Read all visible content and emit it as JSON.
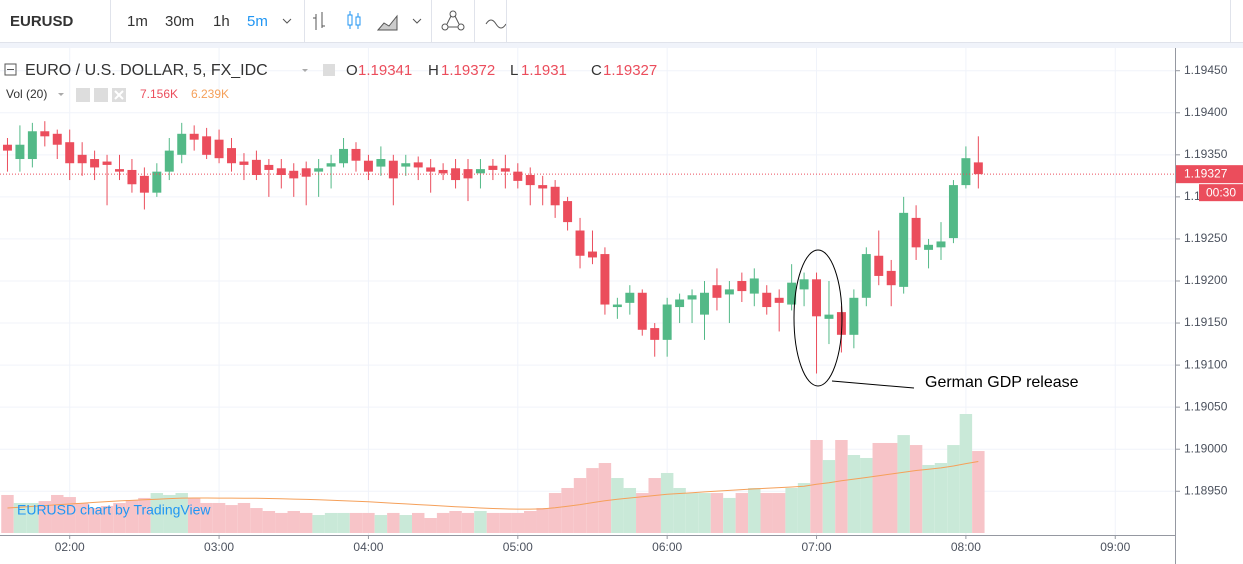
{
  "chart_data": {
    "type": "candlestick",
    "symbol": "EURUSD",
    "intervals": [
      "1m",
      "30m",
      "1h",
      "5m"
    ],
    "title": "EURO / U.S. DOLLAR, 5, FX_IDC",
    "ohlc_letters": [
      "O",
      "H",
      "L",
      "C"
    ],
    "volume_title": "Vol (20)",
    "last_volume_label": "7.156K",
    "last_ma_label": "6.239K",
    "watermark": "EURUSD chart by TradingView",
    "annotation": "German GDP release",
    "countdown": "00:30",
    "up_color": "#53b987",
    "down_color": "#eb4d5c",
    "volume_up_color": "#c9e9d8",
    "volume_down_color": "#f7c4c8",
    "ma_color": "#f5a05a",
    "grid": true,
    "xlim": [
      92,
      564
    ],
    "xticks": [
      {
        "value": 120,
        "label": "02:00"
      },
      {
        "value": 180,
        "label": "03:00"
      },
      {
        "value": 240,
        "label": "04:00"
      },
      {
        "value": 300,
        "label": "05:00"
      },
      {
        "value": 360,
        "label": "06:00"
      },
      {
        "value": 420,
        "label": "07:00"
      },
      {
        "value": 480,
        "label": "08:00"
      },
      {
        "value": 540,
        "label": "09:00"
      }
    ],
    "ylim": [
      1.18898,
      1.19477
    ],
    "yticks": [
      {
        "value": 1.1945,
        "label": "1.19450"
      },
      {
        "value": 1.194,
        "label": "1.19400"
      },
      {
        "value": 1.1935,
        "label": "1.19350"
      },
      {
        "value": 1.193,
        "label": "1.19300"
      },
      {
        "value": 1.1925,
        "label": "1.19250"
      },
      {
        "value": 1.192,
        "label": "1.19200"
      },
      {
        "value": 1.1915,
        "label": "1.19150"
      },
      {
        "value": 1.191,
        "label": "1.19100"
      },
      {
        "value": 1.1905,
        "label": "1.19050"
      },
      {
        "value": 1.19,
        "label": "1.19000"
      },
      {
        "value": 1.1895,
        "label": "1.18950"
      }
    ],
    "x": [
      95,
      100,
      105,
      110,
      115,
      120,
      125,
      130,
      135,
      140,
      145,
      150,
      155,
      160,
      165,
      170,
      175,
      180,
      185,
      190,
      195,
      200,
      205,
      210,
      215,
      220,
      225,
      230,
      235,
      240,
      245,
      250,
      255,
      260,
      265,
      270,
      275,
      280,
      285,
      290,
      295,
      300,
      305,
      310,
      315,
      320,
      325,
      330,
      335,
      340,
      345,
      350,
      355,
      360,
      365,
      370,
      375,
      380,
      385,
      390,
      395,
      400,
      405,
      410,
      415,
      420,
      425,
      430,
      435,
      440,
      445,
      450,
      455,
      460,
      465,
      470,
      475,
      480,
      485
    ],
    "open": [
      1.19362,
      1.19345,
      1.19345,
      1.19378,
      1.19375,
      1.19365,
      1.1935,
      1.19345,
      1.19342,
      1.19333,
      1.19332,
      1.19325,
      1.19305,
      1.1933,
      1.1935,
      1.19375,
      1.19372,
      1.19368,
      1.19358,
      1.19342,
      1.19344,
      1.19338,
      1.19334,
      1.19331,
      1.19334,
      1.1933,
      1.19336,
      1.1934,
      1.19357,
      1.19343,
      1.19336,
      1.19343,
      1.19336,
      1.19341,
      1.19335,
      1.19332,
      1.19334,
      1.19333,
      1.19328,
      1.19337,
      1.19334,
      1.1933,
      1.19326,
      1.19314,
      1.19312,
      1.19295,
      1.1926,
      1.19235,
      1.19232,
      1.19169,
      1.19174,
      1.19186,
      1.19144,
      1.1913,
      1.19169,
      1.19178,
      1.1916,
      1.19195,
      1.19184,
      1.192,
      1.19185,
      1.19186,
      1.1918,
      1.19172,
      1.1919,
      1.19202,
      1.19155,
      1.19163,
      1.19136,
      1.1918,
      1.1923,
      1.19212,
      1.19193,
      1.19275,
      1.19237,
      1.1924,
      1.19251,
      1.19314,
      1.19341
    ],
    "high": [
      1.1937,
      1.19385,
      1.19388,
      1.1939,
      1.1938,
      1.1938,
      1.19365,
      1.19355,
      1.1935,
      1.1935,
      1.19345,
      1.19335,
      1.1934,
      1.1937,
      1.19388,
      1.19385,
      1.19382,
      1.1938,
      1.1937,
      1.19352,
      1.19355,
      1.19345,
      1.19345,
      1.1934,
      1.19342,
      1.19345,
      1.1935,
      1.1937,
      1.19365,
      1.1935,
      1.1936,
      1.1935,
      1.1935,
      1.19348,
      1.19345,
      1.1934,
      1.19345,
      1.19345,
      1.19345,
      1.19345,
      1.1935,
      1.1934,
      1.19335,
      1.19325,
      1.1932,
      1.193,
      1.19275,
      1.1926,
      1.1924,
      1.1918,
      1.19195,
      1.1919,
      1.1915,
      1.1918,
      1.19185,
      1.1919,
      1.192,
      1.19215,
      1.192,
      1.1921,
      1.19215,
      1.19195,
      1.1919,
      1.1922,
      1.1921,
      1.1921,
      1.192,
      1.1917,
      1.1919,
      1.1924,
      1.1926,
      1.19225,
      1.193,
      1.1929,
      1.1925,
      1.1927,
      1.1932,
      1.1936,
      1.19372
    ],
    "low": [
      1.1933,
      1.1933,
      1.19335,
      1.1936,
      1.19345,
      1.1932,
      1.19325,
      1.1932,
      1.1929,
      1.1932,
      1.19305,
      1.19285,
      1.193,
      1.1932,
      1.1934,
      1.19355,
      1.19345,
      1.1934,
      1.1933,
      1.1932,
      1.1932,
      1.193,
      1.1931,
      1.193,
      1.1929,
      1.193,
      1.1931,
      1.19335,
      1.1933,
      1.1932,
      1.19325,
      1.1929,
      1.19325,
      1.1932,
      1.19305,
      1.1932,
      1.1931,
      1.19295,
      1.1931,
      1.1932,
      1.1931,
      1.1931,
      1.1929,
      1.1929,
      1.19275,
      1.1926,
      1.19215,
      1.1922,
      1.1916,
      1.19155,
      1.1916,
      1.19135,
      1.1911,
      1.1911,
      1.1915,
      1.1915,
      1.1913,
      1.19165,
      1.1915,
      1.19175,
      1.1917,
      1.1916,
      1.1914,
      1.19165,
      1.1917,
      1.1909,
      1.19125,
      1.19115,
      1.1912,
      1.1917,
      1.19195,
      1.1917,
      1.19185,
      1.19225,
      1.19215,
      1.19225,
      1.19245,
      1.1931,
      1.1931
    ],
    "close": [
      1.19355,
      1.19362,
      1.19378,
      1.19372,
      1.19362,
      1.1934,
      1.1934,
      1.19335,
      1.19338,
      1.1933,
      1.19315,
      1.19305,
      1.1933,
      1.19355,
      1.19375,
      1.19368,
      1.1935,
      1.19346,
      1.1934,
      1.19338,
      1.19326,
      1.19332,
      1.19326,
      1.19322,
      1.19324,
      1.19334,
      1.1934,
      1.19357,
      1.19343,
      1.1933,
      1.19345,
      1.19322,
      1.1934,
      1.19335,
      1.1933,
      1.19328,
      1.1932,
      1.19322,
      1.19333,
      1.19332,
      1.1933,
      1.19319,
      1.19314,
      1.1931,
      1.1929,
      1.1927,
      1.1923,
      1.19228,
      1.19172,
      1.19172,
      1.19186,
      1.19142,
      1.1913,
      1.19172,
      1.19178,
      1.19183,
      1.19186,
      1.1918,
      1.1919,
      1.19188,
      1.19203,
      1.19169,
      1.19174,
      1.19198,
      1.19202,
      1.19158,
      1.1916,
      1.19136,
      1.1918,
      1.19232,
      1.19206,
      1.19195,
      1.19281,
      1.1924,
      1.19243,
      1.19247,
      1.19314,
      1.19346,
      1.19327
    ],
    "volume": [
      3320,
      2620,
      2620,
      2790,
      3320,
      3140,
      2620,
      2180,
      2360,
      2620,
      2880,
      3060,
      3490,
      3320,
      3490,
      3060,
      2620,
      2620,
      2440,
      2620,
      2180,
      1920,
      1750,
      1920,
      1750,
      1570,
      1750,
      1750,
      1750,
      1750,
      1570,
      1750,
      1570,
      1750,
      1310,
      1750,
      1920,
      1750,
      1920,
      1750,
      1750,
      1750,
      1920,
      2180,
      3490,
      3930,
      4800,
      5670,
      6110,
      4800,
      3930,
      3490,
      4800,
      5240,
      3930,
      3490,
      3490,
      3490,
      3060,
      3490,
      3930,
      3490,
      3490,
      3930,
      4360,
      8120,
      6370,
      8120,
      6810,
      6550,
      7860,
      7860,
      8550,
      7680,
      5940,
      6110,
      7680,
      10390,
      7156
    ],
    "volume_ma": [
      2180,
      2250,
      2320,
      2390,
      2460,
      2530,
      2600,
      2670,
      2740,
      2800,
      2850,
      2900,
      2950,
      3000,
      3050,
      3060,
      3060,
      3050,
      3050,
      3040,
      3030,
      3010,
      2990,
      2960,
      2930,
      2900,
      2860,
      2820,
      2770,
      2720,
      2660,
      2600,
      2540,
      2480,
      2420,
      2360,
      2300,
      2240,
      2180,
      2140,
      2100,
      2090,
      2090,
      2100,
      2200,
      2330,
      2480,
      2650,
      2820,
      2950,
      3060,
      3160,
      3270,
      3380,
      3450,
      3520,
      3590,
      3660,
      3720,
      3790,
      3850,
      3900,
      3960,
      4020,
      4090,
      4250,
      4390,
      4560,
      4710,
      4850,
      5000,
      5150,
      5310,
      5460,
      5570,
      5680,
      5850,
      6060,
      6239
    ]
  }
}
